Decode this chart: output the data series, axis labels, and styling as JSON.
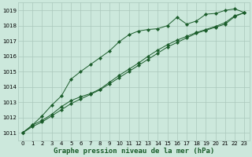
{
  "background_color": "#cce8dc",
  "plot_bg_color": "#cce8dc",
  "grid_color": "#aac8bc",
  "line_color": "#1a5c2a",
  "title": "Graphe pression niveau de la mer (hPa)",
  "title_fontsize": 6.5,
  "xlim": [
    -0.5,
    23.5
  ],
  "ylim": [
    1010.5,
    1019.5
  ],
  "xticks": [
    0,
    1,
    2,
    3,
    4,
    5,
    6,
    7,
    8,
    9,
    10,
    11,
    12,
    13,
    14,
    15,
    16,
    17,
    18,
    19,
    20,
    21,
    22,
    23
  ],
  "yticks": [
    1011,
    1012,
    1013,
    1014,
    1015,
    1016,
    1017,
    1018,
    1019
  ],
  "series1_x": [
    0,
    1,
    2,
    3,
    4,
    5,
    6,
    7,
    8,
    9,
    10,
    11,
    12,
    13,
    14,
    15,
    16,
    17,
    18,
    19,
    20,
    21,
    22,
    23
  ],
  "series1_y": [
    1011.0,
    1011.4,
    1011.7,
    1012.1,
    1012.5,
    1012.9,
    1013.2,
    1013.5,
    1013.8,
    1014.2,
    1014.6,
    1015.0,
    1015.4,
    1015.8,
    1016.2,
    1016.6,
    1016.9,
    1017.2,
    1017.5,
    1017.7,
    1017.9,
    1018.1,
    1018.6,
    1018.85
  ],
  "series2_x": [
    0,
    1,
    2,
    3,
    4,
    5,
    6,
    7,
    8,
    9,
    10,
    11,
    12,
    13,
    14,
    15,
    16,
    17,
    18,
    19,
    20,
    21,
    22,
    23
  ],
  "series2_y": [
    1011.0,
    1011.5,
    1011.8,
    1012.2,
    1012.7,
    1013.1,
    1013.35,
    1013.55,
    1013.85,
    1014.3,
    1014.75,
    1015.15,
    1015.55,
    1016.0,
    1016.4,
    1016.75,
    1017.05,
    1017.3,
    1017.55,
    1017.75,
    1017.95,
    1018.2,
    1018.65,
    1018.85
  ],
  "series3_x": [
    0,
    1,
    2,
    3,
    4,
    5,
    6,
    7,
    8,
    9,
    10,
    11,
    12,
    13,
    14,
    15,
    16,
    17,
    18,
    19,
    20,
    21,
    22,
    23
  ],
  "series3_y": [
    1011.0,
    1011.5,
    1012.1,
    1012.8,
    1013.4,
    1014.5,
    1015.0,
    1015.45,
    1015.9,
    1016.35,
    1016.95,
    1017.4,
    1017.65,
    1017.75,
    1017.8,
    1018.0,
    1018.55,
    1018.1,
    1018.3,
    1018.75,
    1018.8,
    1019.0,
    1019.1,
    1018.85
  ]
}
